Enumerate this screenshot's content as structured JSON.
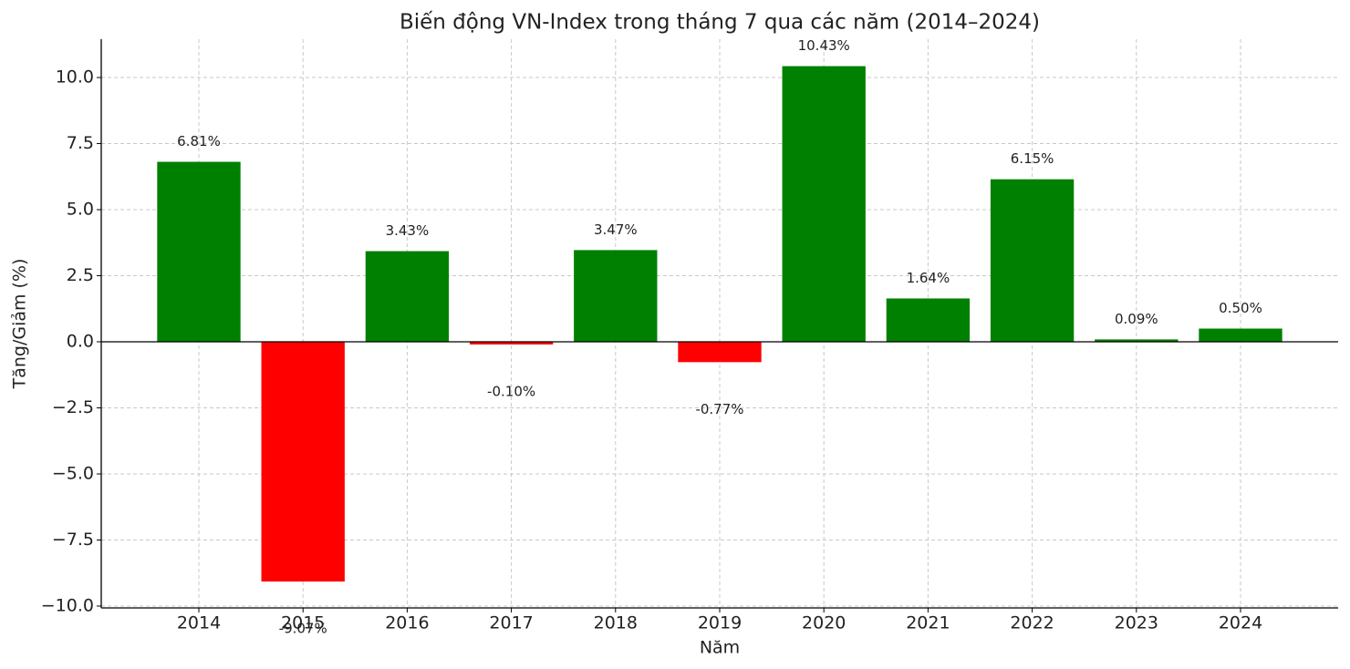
{
  "chart_data": {
    "type": "bar",
    "title": "Biến động VN-Index trong tháng 7 qua các năm (2014–2024)",
    "x_label": "Năm",
    "y_label": "Tăng/Giảm (%)",
    "categories": [
      "2014",
      "2015",
      "2016",
      "2017",
      "2018",
      "2019",
      "2020",
      "2021",
      "2022",
      "2023",
      "2024"
    ],
    "values": [
      6.81,
      -9.07,
      3.43,
      -0.1,
      3.47,
      -0.77,
      10.43,
      1.64,
      6.15,
      0.09,
      0.5
    ],
    "value_labels": [
      "6.81%",
      "-9.07%",
      "3.43%",
      "-0.10%",
      "3.47%",
      "-0.77%",
      "10.43%",
      "1.64%",
      "6.15%",
      "0.09%",
      "0.50%"
    ],
    "colors": [
      "#008000",
      "#ff0000",
      "#008000",
      "#ff0000",
      "#008000",
      "#ff0000",
      "#008000",
      "#008000",
      "#008000",
      "#008000",
      "#008000"
    ],
    "ylim": [
      -10.07,
      11.45
    ],
    "yticks": [
      {
        "value": -10,
        "label": "−10.0"
      },
      {
        "value": -7.5,
        "label": "−7.5"
      },
      {
        "value": -5,
        "label": "−5.0"
      },
      {
        "value": -2.5,
        "label": "−2.5"
      },
      {
        "value": 0,
        "label": "0.0"
      },
      {
        "value": 2.5,
        "label": "2.5"
      },
      {
        "value": 5,
        "label": "5.0"
      },
      {
        "value": 7.5,
        "label": "7.5"
      },
      {
        "value": 10,
        "label": "10.0"
      }
    ],
    "grid": true
  }
}
